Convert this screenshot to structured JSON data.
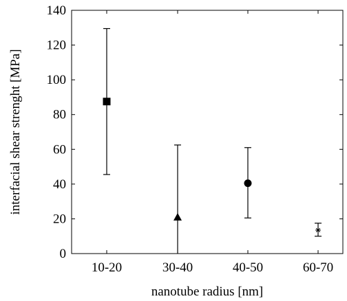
{
  "chart_data": {
    "type": "scatter",
    "title": "",
    "xlabel": "nanotube radius [nm]",
    "ylabel": "interfacial shear strenght [MPa]",
    "categories": [
      "10-20",
      "30-40",
      "40-50",
      "60-70"
    ],
    "ylim": [
      0,
      140
    ],
    "yticks": [
      0,
      20,
      40,
      60,
      80,
      100,
      120,
      140
    ],
    "grid": false,
    "points": [
      {
        "category": "10-20",
        "value": 87.5,
        "err_low": 45.5,
        "err_high": 129.5,
        "marker": "square"
      },
      {
        "category": "30-40",
        "value": 21,
        "err_low": 0,
        "err_high": 62.5,
        "marker": "triangle"
      },
      {
        "category": "40-50",
        "value": 40.5,
        "err_low": 20.5,
        "err_high": 61,
        "marker": "circle"
      },
      {
        "category": "60-70",
        "value": 13.5,
        "err_low": 10,
        "err_high": 17.5,
        "marker": "star"
      }
    ]
  }
}
